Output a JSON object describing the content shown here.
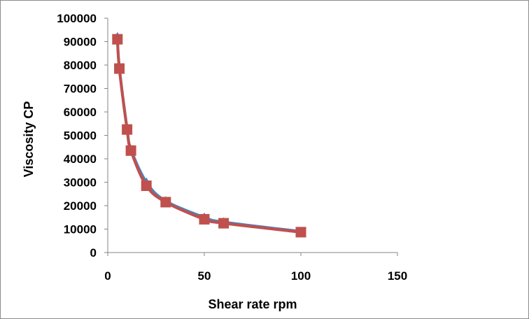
{
  "chart_data": {
    "type": "scatter",
    "title": "",
    "xlabel": "Shear rate rpm",
    "ylabel": "Viscosity CP",
    "xlim": [
      0,
      150
    ],
    "ylim": [
      0,
      100000
    ],
    "x_ticks": [
      0,
      50,
      100,
      150
    ],
    "y_ticks": [
      0,
      10000,
      20000,
      30000,
      40000,
      50000,
      60000,
      70000,
      80000,
      90000,
      100000
    ],
    "x_tick_labels": [
      "0",
      "50",
      "100",
      "150"
    ],
    "y_tick_labels": [
      "0",
      "10000",
      "20000",
      "30000",
      "40000",
      "50000",
      "60000",
      "70000",
      "80000",
      "90000",
      "100000"
    ],
    "grid": false,
    "legend": "none",
    "lines": "smooth",
    "series": [
      {
        "color": "#4f81bd",
        "marker": "triangle",
        "x": [
          5,
          6,
          10,
          12,
          20,
          30,
          50,
          60,
          100
        ],
        "y": [
          92000,
          79000,
          53000,
          44000,
          30000,
          22000,
          15000,
          13000,
          9000
        ]
      },
      {
        "color": "#c0504d",
        "marker": "square",
        "x": [
          5,
          6,
          10,
          12,
          20,
          30,
          50,
          60,
          100
        ],
        "y": [
          91000,
          78500,
          52500,
          43500,
          28500,
          21500,
          14200,
          12500,
          8700
        ]
      }
    ]
  }
}
